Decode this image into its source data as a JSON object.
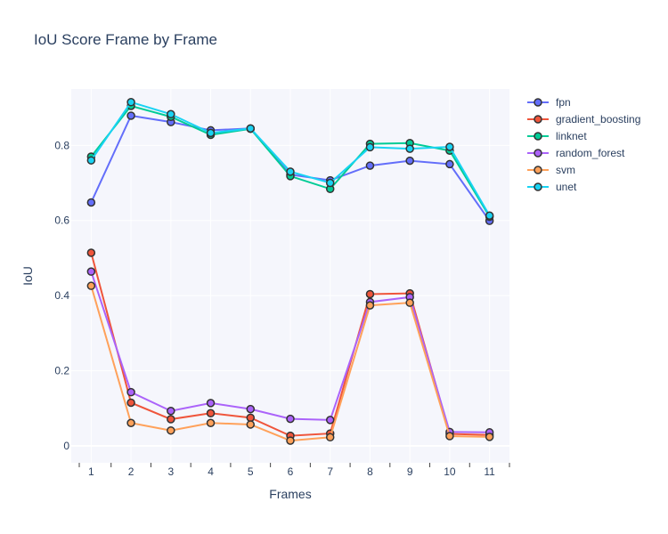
{
  "chart_data": {
    "type": "line",
    "title": "IoU Score Frame by Frame",
    "xlabel": "Frames",
    "ylabel": "IoU",
    "x": [
      1,
      2,
      3,
      4,
      5,
      6,
      7,
      8,
      9,
      10,
      11
    ],
    "x_tick_labels": [
      "1",
      "2",
      "3",
      "4",
      "5",
      "6",
      "7",
      "8",
      "9",
      "10",
      "11"
    ],
    "xlim": [
      0.5,
      11.5
    ],
    "ylim": [
      -0.045,
      0.95
    ],
    "y_ticks": [
      0,
      0.2,
      0.4,
      0.6,
      0.8
    ],
    "y_tick_labels": [
      "0",
      "0.2",
      "0.4",
      "0.6",
      "0.8"
    ],
    "grid": true,
    "legend_position": "right",
    "background_color": "#f5f6fc",
    "series": [
      {
        "name": "fpn",
        "color": "#636efa",
        "values": [
          0.648,
          0.879,
          0.862,
          0.84,
          0.845,
          0.722,
          0.707,
          0.746,
          0.759,
          0.75,
          0.599
        ]
      },
      {
        "name": "gradient_boosting",
        "color": "#ef553b",
        "values": [
          0.514,
          0.115,
          0.071,
          0.087,
          0.075,
          0.027,
          0.033,
          0.404,
          0.406,
          0.032,
          0.029
        ]
      },
      {
        "name": "linknet",
        "color": "#00cc96",
        "values": [
          0.77,
          0.905,
          0.876,
          0.828,
          0.844,
          0.718,
          0.684,
          0.804,
          0.806,
          0.786,
          0.61
        ]
      },
      {
        "name": "random_forest",
        "color": "#ab63fa",
        "values": [
          0.464,
          0.143,
          0.093,
          0.114,
          0.098,
          0.072,
          0.069,
          0.383,
          0.396,
          0.037,
          0.036
        ]
      },
      {
        "name": "svm",
        "color": "#ffa15a",
        "values": [
          0.426,
          0.061,
          0.041,
          0.061,
          0.057,
          0.014,
          0.023,
          0.374,
          0.381,
          0.026,
          0.024
        ]
      },
      {
        "name": "unet",
        "color": "#19d3f3",
        "values": [
          0.76,
          0.915,
          0.883,
          0.833,
          0.845,
          0.73,
          0.7,
          0.795,
          0.791,
          0.796,
          0.613
        ]
      }
    ]
  }
}
